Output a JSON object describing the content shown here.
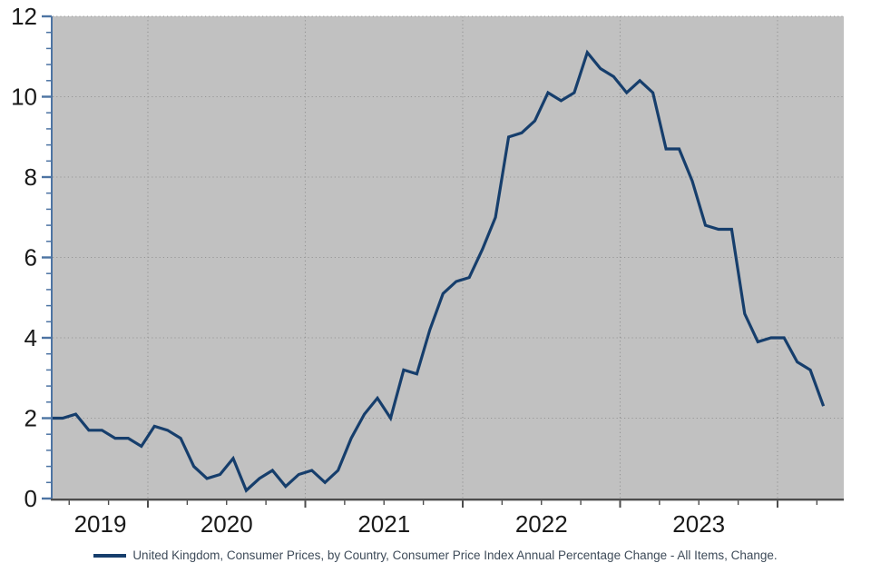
{
  "chart_data": {
    "type": "line",
    "title": "",
    "legend_position": "bottom",
    "grid": "dotted",
    "ylim": [
      0,
      12
    ],
    "y_major_step": 2,
    "y_minor_step": 0.4,
    "y_tick_labels": [
      "0",
      "2",
      "4",
      "6",
      "8",
      "10",
      "12"
    ],
    "x_tick_labels": [
      "2019",
      "2020",
      "2021",
      "2022",
      "2023"
    ],
    "x_minor_tick_interval_months": 3,
    "series": [
      {
        "name": "United Kingdom, Consumer Prices, by Country, Consumer Price Index Annual Percentage Change - All Items, Change.",
        "color": "#163e6c",
        "x": [
          "2019-05",
          "2019-06",
          "2019-07",
          "2019-08",
          "2019-09",
          "2019-10",
          "2019-11",
          "2019-12",
          "2020-01",
          "2020-02",
          "2020-03",
          "2020-04",
          "2020-05",
          "2020-06",
          "2020-07",
          "2020-08",
          "2020-09",
          "2020-10",
          "2020-11",
          "2020-12",
          "2021-01",
          "2021-02",
          "2021-03",
          "2021-04",
          "2021-05",
          "2021-06",
          "2021-07",
          "2021-08",
          "2021-09",
          "2021-10",
          "2021-11",
          "2021-12",
          "2022-01",
          "2022-02",
          "2022-03",
          "2022-04",
          "2022-05",
          "2022-06",
          "2022-07",
          "2022-08",
          "2022-09",
          "2022-10",
          "2022-11",
          "2022-12",
          "2023-01",
          "2023-02",
          "2023-03",
          "2023-04",
          "2023-05",
          "2023-06",
          "2023-07",
          "2023-08",
          "2023-09",
          "2023-10",
          "2023-11",
          "2023-12",
          "2024-01",
          "2024-02",
          "2024-03",
          "2024-04"
        ],
        "values": [
          2.0,
          2.0,
          2.1,
          1.7,
          1.7,
          1.5,
          1.5,
          1.3,
          1.8,
          1.7,
          1.5,
          0.8,
          0.5,
          0.6,
          1.0,
          0.2,
          0.5,
          0.7,
          0.3,
          0.6,
          0.7,
          0.4,
          0.7,
          1.5,
          2.1,
          2.5,
          2.0,
          3.2,
          3.1,
          4.2,
          5.1,
          5.4,
          5.5,
          6.2,
          7.0,
          9.0,
          9.1,
          9.4,
          10.1,
          9.9,
          10.1,
          11.1,
          10.7,
          10.5,
          10.1,
          10.4,
          10.1,
          8.7,
          8.7,
          7.9,
          6.8,
          6.7,
          6.7,
          4.6,
          3.9,
          4.0,
          4.0,
          3.4,
          3.2,
          2.3
        ]
      }
    ],
    "colors": {
      "plot_background": "#c1c1c1",
      "grid_line": "#969696",
      "y_axis": "#4d74a3",
      "x_axis": "#4c4c4c",
      "axis_label": "#1a1a1a",
      "legend_text": "#3e4b59"
    }
  }
}
